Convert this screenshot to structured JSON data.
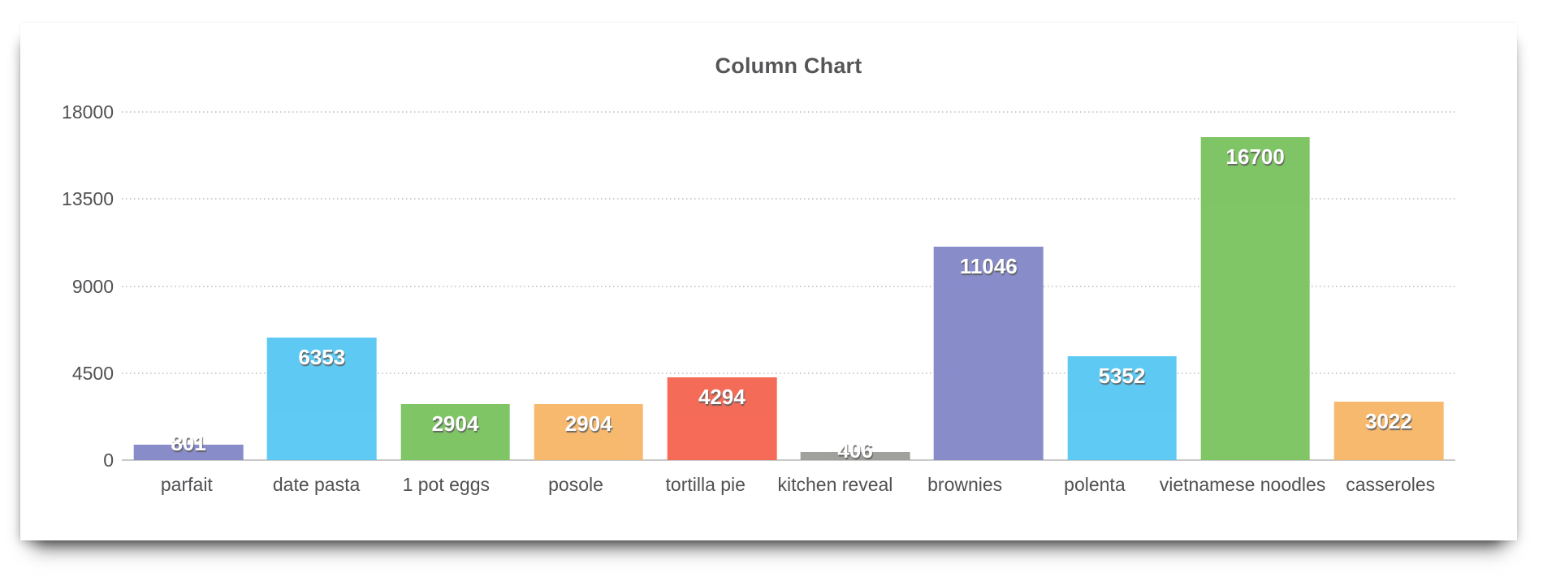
{
  "chart_data": {
    "type": "bar",
    "title": "Column Chart",
    "categories": [
      "parfait",
      "date pasta",
      "1 pot eggs",
      "posole",
      "tortilla pie",
      "kitchen reveal",
      "brownies",
      "polenta",
      "vietnamese noodles",
      "casseroles"
    ],
    "values": [
      801,
      6353,
      2904,
      2904,
      4294,
      406,
      11046,
      5352,
      16700,
      3022
    ],
    "bar_colors": [
      "#8185C6",
      "#55C7F3",
      "#78C25C",
      "#F7B566",
      "#F4624E",
      "#9B9B97",
      "#8185C6",
      "#55C7F3",
      "#78C25C",
      "#F7B566"
    ],
    "xlabel": "",
    "ylabel": "",
    "yticks": [
      0,
      4500,
      9000,
      13500,
      18000
    ],
    "ylim": [
      0,
      18000
    ],
    "grid": "horizontal-dotted",
    "legend": "none",
    "value_labels_shown": true
  },
  "style_colors": {
    "title_text": "#565658",
    "axis_text": "#515154",
    "gridline": "#cccccc",
    "axis_line": "#c9c9c9",
    "card_background": "#ffffff",
    "value_label_text": "#ffffff"
  }
}
